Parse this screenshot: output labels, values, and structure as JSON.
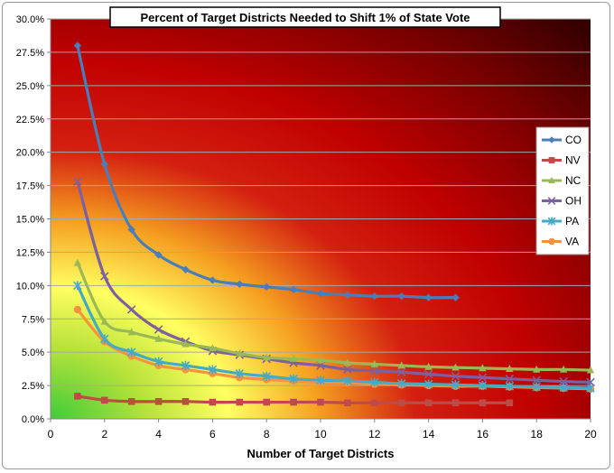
{
  "chart_data": {
    "type": "line",
    "title": "Percent of Target Districts Needed to Shift 1% of State Vote",
    "xlabel": "Number of Target Districts",
    "ylabel": "",
    "xlim": [
      0,
      20
    ],
    "ylim": [
      0,
      30
    ],
    "x_ticks": [
      "0",
      "2",
      "4",
      "6",
      "8",
      "10",
      "12",
      "14",
      "16",
      "18",
      "20"
    ],
    "y_ticks": [
      "0.0%",
      "2.5%",
      "5.0%",
      "7.5%",
      "10.0%",
      "12.5%",
      "15.0%",
      "17.5%",
      "20.0%",
      "22.5%",
      "25.0%",
      "27.5%",
      "30.0%"
    ],
    "grid": "horizontal",
    "legend": "right",
    "series": [
      {
        "name": "CO",
        "color": "#4a7ebb",
        "marker": "diamond",
        "x": [
          1,
          2,
          3,
          4,
          5,
          6,
          7,
          8,
          9,
          10,
          11,
          12,
          13,
          14,
          15
        ],
        "values": [
          28.0,
          19.1,
          14.2,
          12.3,
          11.2,
          10.4,
          10.1,
          9.9,
          9.7,
          9.4,
          9.3,
          9.2,
          9.2,
          9.1,
          9.1
        ]
      },
      {
        "name": "NV",
        "color": "#be4b48",
        "marker": "square",
        "x": [
          1,
          2,
          3,
          4,
          5,
          6,
          7,
          8,
          9,
          10,
          11,
          12,
          13,
          14,
          15,
          16,
          17
        ],
        "values": [
          1.7,
          1.4,
          1.3,
          1.3,
          1.3,
          1.25,
          1.25,
          1.25,
          1.25,
          1.25,
          1.2,
          1.2,
          1.2,
          1.2,
          1.2,
          1.2,
          1.2
        ]
      },
      {
        "name": "NC",
        "color": "#98b954",
        "marker": "triangle",
        "x": [
          1,
          2,
          3,
          4,
          5,
          6,
          7,
          8,
          9,
          10,
          11,
          12,
          13,
          14,
          15,
          16,
          17,
          18,
          19,
          20
        ],
        "values": [
          11.7,
          7.3,
          6.5,
          6.0,
          5.6,
          5.3,
          4.9,
          4.6,
          4.5,
          4.4,
          4.2,
          4.1,
          4.0,
          3.9,
          3.85,
          3.8,
          3.75,
          3.7,
          3.7,
          3.65
        ]
      },
      {
        "name": "OH",
        "color": "#7d60a0",
        "marker": "x",
        "x": [
          1,
          2,
          3,
          4,
          5,
          6,
          7,
          8,
          9,
          10,
          11,
          12,
          13,
          14,
          15,
          16,
          17,
          18,
          19,
          20
        ],
        "values": [
          17.8,
          10.7,
          8.2,
          6.7,
          5.8,
          5.1,
          4.8,
          4.5,
          4.2,
          4.0,
          3.7,
          3.6,
          3.5,
          3.35,
          3.2,
          3.1,
          3.0,
          2.9,
          2.8,
          2.75
        ]
      },
      {
        "name": "PA",
        "color": "#46aac5",
        "marker": "star",
        "x": [
          1,
          2,
          3,
          4,
          5,
          6,
          7,
          8,
          9,
          10,
          11,
          12,
          13,
          14,
          15,
          16,
          17,
          18,
          19,
          20
        ],
        "values": [
          10.0,
          6.0,
          5.0,
          4.3,
          4.0,
          3.7,
          3.4,
          3.2,
          3.0,
          2.9,
          2.85,
          2.75,
          2.65,
          2.6,
          2.55,
          2.5,
          2.45,
          2.4,
          2.35,
          2.3
        ]
      },
      {
        "name": "VA",
        "color": "#f69240",
        "marker": "circle",
        "x": [
          1,
          2,
          3,
          4,
          5,
          6,
          7,
          8,
          9,
          10,
          11,
          12,
          13,
          14,
          15,
          16,
          17,
          18,
          19,
          20
        ],
        "values": [
          8.2,
          5.8,
          4.7,
          4.0,
          3.7,
          3.4,
          3.1,
          2.95,
          2.85,
          2.75,
          2.7,
          2.6,
          2.55,
          2.5,
          2.45,
          2.45,
          2.4,
          2.35,
          2.3,
          2.25
        ]
      }
    ]
  }
}
